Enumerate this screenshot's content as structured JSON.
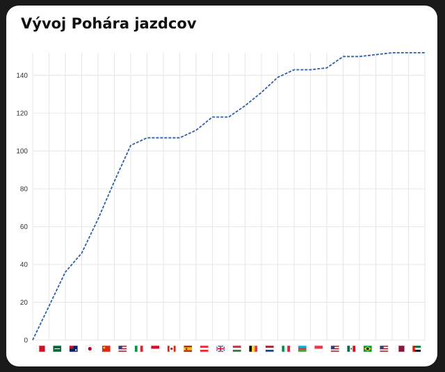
{
  "chart_data": {
    "type": "line",
    "title": "Vývoj Pohára jazdcov",
    "xlabel": "",
    "ylabel": "",
    "ylim": [
      0,
      152
    ],
    "y_ticks": [
      0,
      20,
      40,
      60,
      80,
      100,
      120,
      140
    ],
    "grid": true,
    "legend": "none",
    "line_color": "#2b5fa8",
    "line_style": "dashed",
    "x": [
      0,
      1,
      2,
      3,
      4,
      5,
      6,
      7,
      8,
      9,
      10,
      11,
      12,
      13,
      14,
      15,
      16,
      17,
      18,
      19,
      20,
      21,
      22,
      23,
      24
    ],
    "x_icons": [
      "bahrain-flag-icon",
      "saudi-arabia-flag-icon",
      "australia-flag-icon",
      "japan-flag-icon",
      "china-flag-icon",
      "usa-flag-icon",
      "italy-flag-icon",
      "monaco-flag-icon",
      "canada-flag-icon",
      "spain-flag-icon",
      "austria-flag-icon",
      "uk-flag-icon",
      "hungary-flag-icon",
      "belgium-flag-icon",
      "netherlands-flag-icon",
      "italy-flag-icon",
      "azerbaijan-flag-icon",
      "singapore-flag-icon",
      "usa-flag-icon",
      "mexico-flag-icon",
      "brazil-flag-icon",
      "usa-flag-icon",
      "qatar-flag-icon",
      "uae-flag-icon"
    ],
    "series": [
      {
        "values": [
          0,
          18,
          36,
          46,
          64,
          84,
          103,
          107,
          107,
          107,
          111,
          118,
          118,
          124,
          131,
          139,
          143,
          143,
          144,
          150,
          150,
          151,
          152,
          152,
          152
        ]
      }
    ]
  }
}
